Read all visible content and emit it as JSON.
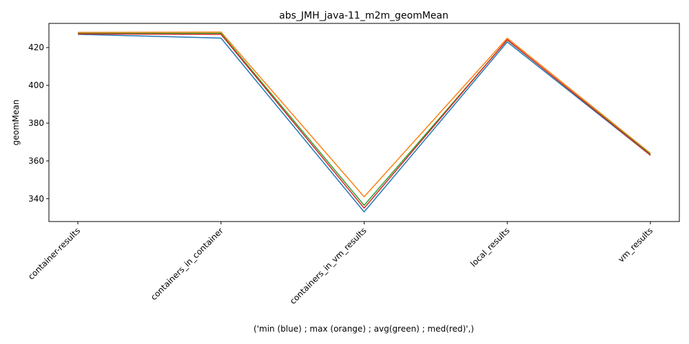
{
  "chart_data": {
    "type": "line",
    "title": "abs_JMH_java-11_m2m_geomMean",
    "xlabel": "('min (blue) ; max (orange) ; avg(green) ; med(red)',)",
    "ylabel": "geomMean",
    "categories": [
      "container-results",
      "containers_in_container",
      "containers_in_vm_results",
      "local_results",
      "vm_results"
    ],
    "ylim": [
      327.9,
      432.8
    ],
    "yticks": [
      340,
      360,
      380,
      400,
      420
    ],
    "grid": false,
    "series": [
      {
        "color": "#1f77b4",
        "values": [
          427.0,
          425.0,
          333.0,
          423.0,
          363.0
        ]
      },
      {
        "color": "#ff7f0e",
        "values": [
          428.0,
          428.2,
          341.0,
          425.0,
          364.0
        ]
      },
      {
        "color": "#2ca02c",
        "values": [
          427.5,
          427.5,
          336.5,
          424.0,
          363.5
        ]
      },
      {
        "color": "#d62728",
        "values": [
          427.2,
          427.0,
          335.0,
          424.2,
          363.0
        ]
      }
    ]
  }
}
